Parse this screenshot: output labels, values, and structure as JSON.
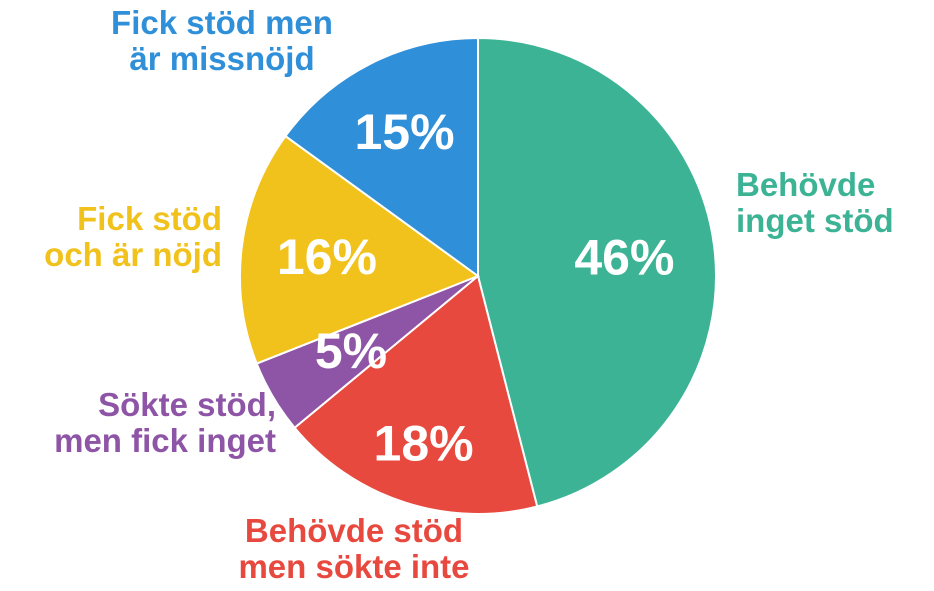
{
  "chart_data": {
    "type": "pie",
    "slices": [
      {
        "label_lines": [
          "Behövde",
          "inget stöd"
        ],
        "value": 46,
        "value_label": "46%",
        "color": "#3bb394"
      },
      {
        "label_lines": [
          "Behövde stöd",
          "men sökte inte"
        ],
        "value": 18,
        "value_label": "18%",
        "color": "#e8493f"
      },
      {
        "label_lines": [
          "Sökte stöd,",
          "men fick inget"
        ],
        "value": 5,
        "value_label": "5%",
        "color": "#8e55a6"
      },
      {
        "label_lines": [
          "Fick stöd",
          "och är nöjd"
        ],
        "value": 16,
        "value_label": "16%",
        "color": "#f2c21c"
      },
      {
        "label_lines": [
          "Fick stöd men",
          "är missnöjd"
        ],
        "value": 15,
        "value_label": "15%",
        "color": "#2f8fd8"
      }
    ],
    "start": "top",
    "direction": "clockwise"
  }
}
